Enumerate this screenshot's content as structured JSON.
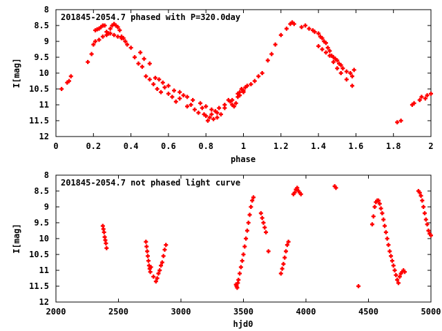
{
  "chart_data": [
    {
      "type": "scatter",
      "title": "201845-2054.7 phased with P=320.0day",
      "xlabel": "phase",
      "ylabel": "I[mag]",
      "xlim": [
        0,
        2
      ],
      "ylim": [
        12,
        8
      ],
      "y_inverted": true,
      "xticks": [
        "0",
        "0.2",
        "0.4",
        "0.6",
        "0.8",
        "1",
        "1.2",
        "1.4",
        "1.6",
        "1.8",
        "2"
      ],
      "yticks": [
        "8",
        "8.5",
        "9",
        "9.5",
        "10",
        "10.5",
        "11",
        "11.5",
        "12"
      ],
      "grid": false,
      "marker_color": "#ff0000",
      "series": [
        {
          "x": [
            0.03,
            0.06,
            0.07,
            0.08,
            0.17,
            0.19,
            0.2,
            0.21,
            0.22,
            0.23,
            0.24,
            0.25,
            0.26,
            0.27,
            0.28,
            0.29,
            0.3,
            0.31,
            0.32,
            0.33,
            0.34,
            0.35,
            0.36,
            0.38,
            0.4,
            0.42,
            0.44,
            0.46,
            0.48,
            0.5,
            0.52,
            0.54,
            0.56,
            0.58,
            0.6,
            0.62,
            0.64,
            0.66,
            0.68,
            0.7,
            0.72,
            0.74,
            0.76,
            0.78,
            0.79,
            0.8,
            0.81,
            0.82,
            0.83,
            0.84,
            0.85,
            0.86,
            0.87,
            0.88,
            0.9,
            0.92,
            0.93,
            0.94,
            0.95,
            0.96,
            0.97,
            0.98,
            0.99,
            1.0,
            1.01,
            1.02,
            1.04,
            1.06,
            1.08,
            1.1,
            1.13,
            1.15,
            1.17,
            1.2,
            1.23,
            1.25,
            1.26,
            1.27,
            1.31,
            1.33,
            1.35,
            1.37,
            1.38,
            1.4,
            1.41,
            1.42,
            1.43,
            1.44,
            1.45,
            1.46,
            1.47,
            1.48,
            1.49,
            1.5,
            1.51,
            1.52,
            1.53,
            1.55,
            1.57,
            1.58,
            1.59,
            1.82,
            1.84,
            1.9,
            1.91,
            1.94,
            1.95,
            1.97,
            1.98,
            2.0,
            0.21,
            0.23,
            0.25,
            0.27,
            0.29,
            0.31,
            0.33,
            0.35,
            0.37,
            0.45,
            0.47,
            0.5,
            0.53,
            0.55,
            0.57,
            0.6,
            0.63,
            0.66,
            0.7,
            0.73,
            0.77,
            0.8,
            0.83,
            0.86,
            0.9,
            0.94,
            0.97,
            0.98,
            1.0,
            1.4,
            1.42,
            1.44,
            1.46,
            1.48,
            1.5,
            1.52,
            1.55,
            1.58
          ],
          "y": [
            10.5,
            10.3,
            10.25,
            10.1,
            9.65,
            9.4,
            9.1,
            8.65,
            8.62,
            8.6,
            8.55,
            8.5,
            8.5,
            8.7,
            8.75,
            8.6,
            8.5,
            8.45,
            8.5,
            8.55,
            8.65,
            8.85,
            8.9,
            9.1,
            9.2,
            9.5,
            9.7,
            9.8,
            10.1,
            10.2,
            10.35,
            10.5,
            10.6,
            10.45,
            10.65,
            10.75,
            10.9,
            10.8,
            10.7,
            11.05,
            11.0,
            11.15,
            11.25,
            11.1,
            11.3,
            11.35,
            11.5,
            11.4,
            11.3,
            11.45,
            11.2,
            11.4,
            11.1,
            11.3,
            11.0,
            10.85,
            10.9,
            11.0,
            11.05,
            10.95,
            10.75,
            10.6,
            10.5,
            10.55,
            10.45,
            10.4,
            10.35,
            10.25,
            10.1,
            10.0,
            9.6,
            9.4,
            9.1,
            8.8,
            8.6,
            8.45,
            8.4,
            8.45,
            8.55,
            8.5,
            8.6,
            8.65,
            8.7,
            8.75,
            8.85,
            8.9,
            9.0,
            9.05,
            9.2,
            9.3,
            9.45,
            9.5,
            9.55,
            9.6,
            9.7,
            9.75,
            9.85,
            9.95,
            10.0,
            10.1,
            9.9,
            11.55,
            11.5,
            11.0,
            10.95,
            10.85,
            10.75,
            10.8,
            10.7,
            10.65,
            9.0,
            8.95,
            8.85,
            8.8,
            8.75,
            8.8,
            8.85,
            8.9,
            9.0,
            9.35,
            9.55,
            9.7,
            10.15,
            10.2,
            10.3,
            10.4,
            10.55,
            10.6,
            10.75,
            10.85,
            10.95,
            11.05,
            11.15,
            11.25,
            11.1,
            10.85,
            10.65,
            10.7,
            10.6,
            9.15,
            9.25,
            9.35,
            9.45,
            9.65,
            9.85,
            10.0,
            10.2,
            10.4
          ]
        }
      ]
    },
    {
      "type": "scatter",
      "title": "201845-2054.7 not phased light curve",
      "xlabel": "hjd0",
      "ylabel": "I[mag]",
      "xlim": [
        2000,
        5000
      ],
      "ylim": [
        12,
        8
      ],
      "y_inverted": true,
      "xticks": [
        "2000",
        "2500",
        "3000",
        "3500",
        "4000",
        "4500",
        "5000"
      ],
      "yticks": [
        "8",
        "8.5",
        "9",
        "9.5",
        "10",
        "10.5",
        "11",
        "11.5",
        "12"
      ],
      "grid": false,
      "marker_color": "#ff0000",
      "series": [
        {
          "x": [
            2375,
            2380,
            2385,
            2390,
            2395,
            2400,
            2405,
            2720,
            2725,
            2730,
            2735,
            2740,
            2745,
            2750,
            2755,
            2760,
            2780,
            2800,
            2810,
            2820,
            2830,
            2840,
            2850,
            2860,
            2870,
            2880,
            3440,
            3445,
            3450,
            3455,
            3460,
            3470,
            3480,
            3490,
            3500,
            3510,
            3520,
            3530,
            3540,
            3550,
            3560,
            3570,
            3580,
            3640,
            3650,
            3660,
            3670,
            3680,
            3700,
            3800,
            3810,
            3820,
            3830,
            3840,
            3850,
            3860,
            3900,
            3910,
            3920,
            3930,
            3940,
            3950,
            3960,
            4230,
            4240,
            4420,
            4530,
            4540,
            4550,
            4560,
            4570,
            4580,
            4590,
            4600,
            4610,
            4620,
            4630,
            4640,
            4650,
            4660,
            4670,
            4680,
            4690,
            4700,
            4710,
            4720,
            4730,
            4740,
            4750,
            4760,
            4770,
            4780,
            4790,
            4900,
            4910,
            4920,
            4930,
            4940,
            4950,
            4960,
            4970,
            4980,
            4990,
            5000
          ],
          "y": [
            9.6,
            9.7,
            9.8,
            9.95,
            10.05,
            10.15,
            10.3,
            10.1,
            10.25,
            10.4,
            10.55,
            10.7,
            10.85,
            10.95,
            11.05,
            10.9,
            11.2,
            11.35,
            11.25,
            11.1,
            11.0,
            10.85,
            10.75,
            10.55,
            10.35,
            10.2,
            11.45,
            11.5,
            11.55,
            11.4,
            11.3,
            11.1,
            10.9,
            10.7,
            10.5,
            10.25,
            10.0,
            9.75,
            9.5,
            9.25,
            9.0,
            8.8,
            8.7,
            9.2,
            9.35,
            9.5,
            9.65,
            9.8,
            10.4,
            11.1,
            10.95,
            10.8,
            10.6,
            10.4,
            10.2,
            10.1,
            8.6,
            8.55,
            8.45,
            8.4,
            8.5,
            8.55,
            8.6,
            8.35,
            8.4,
            11.5,
            9.55,
            9.3,
            9.0,
            8.85,
            8.8,
            8.8,
            8.9,
            9.05,
            9.2,
            9.4,
            9.6,
            9.8,
            10.0,
            10.2,
            10.4,
            10.55,
            10.7,
            10.85,
            11.0,
            11.15,
            11.3,
            11.4,
            11.2,
            11.1,
            11.05,
            11.0,
            11.05,
            8.5,
            8.55,
            8.65,
            8.8,
            9.0,
            9.2,
            9.4,
            9.55,
            9.75,
            9.85,
            9.9
          ]
        }
      ]
    }
  ]
}
